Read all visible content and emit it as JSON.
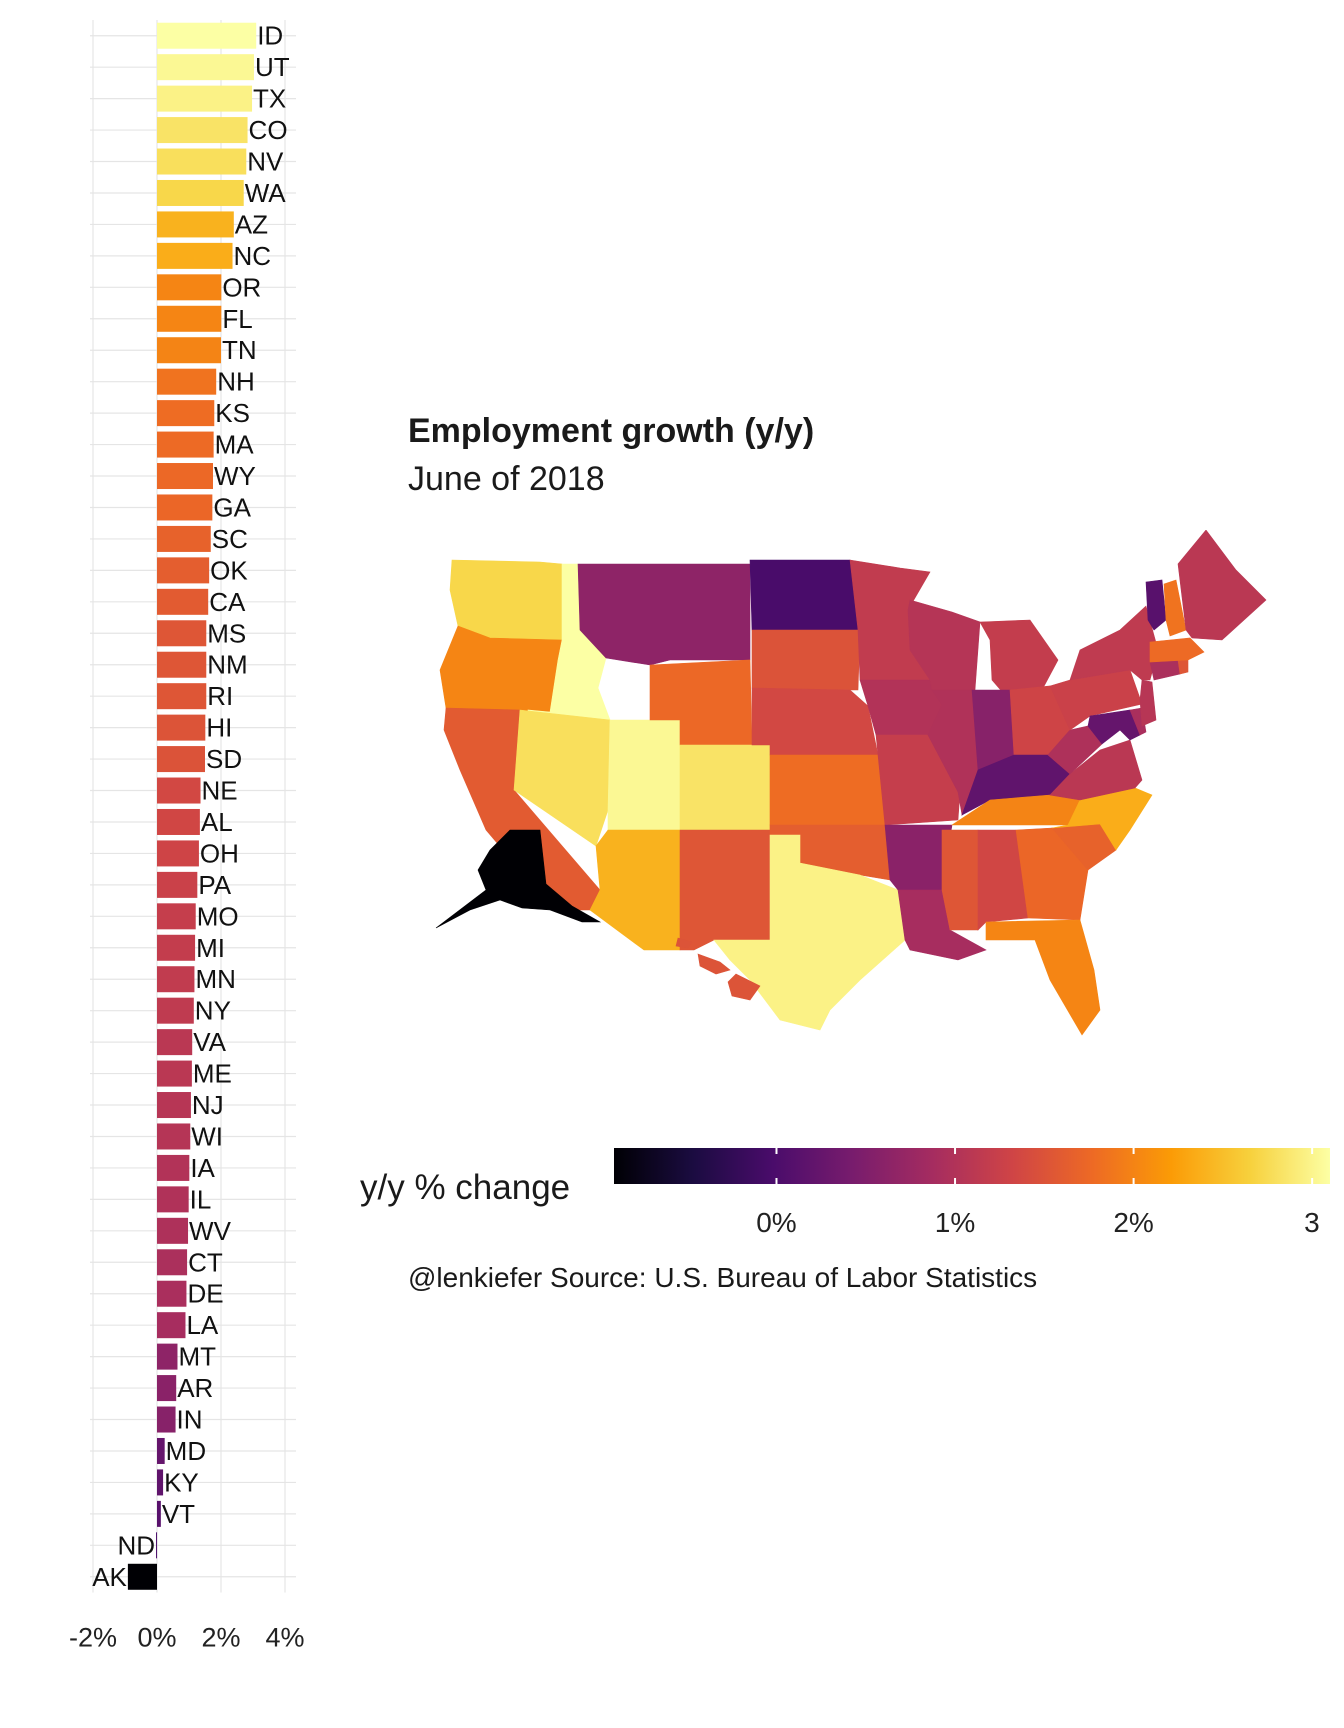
{
  "chart_data": [
    {
      "type": "bar",
      "orientation": "horizontal",
      "title": "",
      "xlabel": "",
      "ylabel": "",
      "xlim": [
        -0.03,
        0.048
      ],
      "x_ticks": [
        -0.02,
        0,
        0.02,
        0.04
      ],
      "x_tick_labels": [
        "-2%",
        "0%",
        "2%",
        "4%"
      ],
      "grid": true,
      "categories": [
        "ID",
        "UT",
        "TX",
        "CO",
        "NV",
        "WA",
        "AZ",
        "NC",
        "OR",
        "FL",
        "TN",
        "NH",
        "KS",
        "MA",
        "WY",
        "GA",
        "SC",
        "OK",
        "CA",
        "MS",
        "NM",
        "RI",
        "HI",
        "SD",
        "NE",
        "AL",
        "OH",
        "PA",
        "MO",
        "MI",
        "MN",
        "NY",
        "VA",
        "ME",
        "NJ",
        "WI",
        "IA",
        "IL",
        "WV",
        "CT",
        "DE",
        "LA",
        "MT",
        "AR",
        "IN",
        "MD",
        "KY",
        "VT",
        "ND",
        "AK"
      ],
      "values": [
        0.031,
        0.0303,
        0.0297,
        0.0283,
        0.0279,
        0.0271,
        0.024,
        0.0236,
        0.0201,
        0.0201,
        0.02,
        0.0185,
        0.0179,
        0.0177,
        0.0175,
        0.0173,
        0.0168,
        0.0163,
        0.016,
        0.0154,
        0.0154,
        0.0154,
        0.0151,
        0.015,
        0.0136,
        0.0134,
        0.0131,
        0.0126,
        0.0121,
        0.0119,
        0.0117,
        0.0115,
        0.011,
        0.0109,
        0.0106,
        0.0104,
        0.0101,
        0.0099,
        0.0097,
        0.0094,
        0.0092,
        0.0089,
        0.0064,
        0.006,
        0.0058,
        0.0024,
        0.0019,
        0.0012,
        -0.0003,
        -0.0091
      ]
    },
    {
      "type": "choropleth-map",
      "title": "Employment growth (y/y)",
      "subtitle": "June of 2018",
      "legend_title": "y/y % change",
      "legend_range": [
        -0.0091,
        0.031
      ],
      "legend_ticks": [
        0,
        0.01,
        0.02,
        0.03
      ],
      "legend_tick_labels": [
        "0%",
        "1%",
        "2%",
        "3"
      ],
      "legend_position": "bottom",
      "caption": "@lenkiefer Source: U.S. Bureau of Labor Statistics"
    }
  ],
  "colors": {
    "palette": [
      "#000004",
      "#1b0c41",
      "#4a0c6b",
      "#781c6d",
      "#a52c60",
      "#cf4446",
      "#ed6925",
      "#fb9b06",
      "#f7d13d",
      "#fcffa4"
    ],
    "grid": "#e5e5e5"
  }
}
